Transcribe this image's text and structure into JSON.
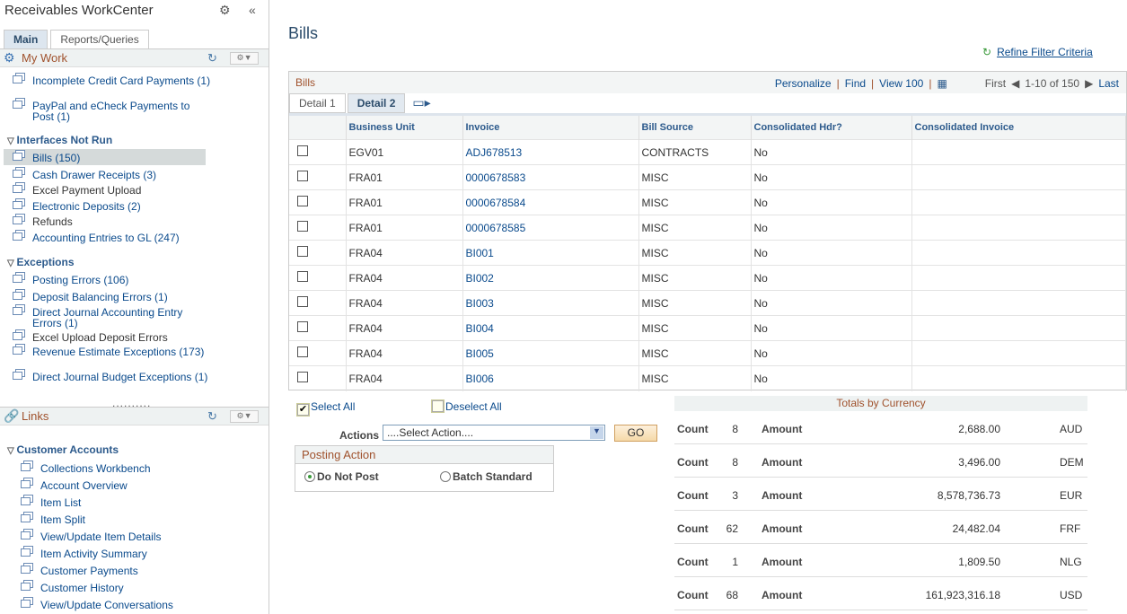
{
  "sidebar": {
    "title": "Receivables WorkCenter",
    "tabs": [
      "Main",
      "Reports/Queries"
    ],
    "my_work": {
      "title": "My Work",
      "items_top": [
        {
          "label": "Incomplete Credit Card Payments (1)"
        },
        {
          "label": "PayPal and eCheck Payments to Post (1)"
        }
      ],
      "groups": [
        {
          "title": "Interfaces Not Run",
          "items": [
            {
              "label": "Bills (150)",
              "link": true
            },
            {
              "label": "Cash Drawer Receipts (3)",
              "link": true
            },
            {
              "label": "Excel Payment Upload",
              "link": false
            },
            {
              "label": "Electronic Deposits (2)",
              "link": true
            },
            {
              "label": "Refunds",
              "link": false
            },
            {
              "label": "Accounting Entries to GL (247)",
              "link": true
            }
          ]
        },
        {
          "title": "Exceptions",
          "items": [
            {
              "label": "Posting Errors (106)",
              "link": true
            },
            {
              "label": "Deposit Balancing Errors (1)",
              "link": true
            },
            {
              "label": "Direct Journal Accounting Entry Errors (1)",
              "link": true
            },
            {
              "label": "Excel Upload Deposit Errors",
              "link": false
            },
            {
              "label": "Revenue Estimate Exceptions (173)",
              "link": true
            },
            {
              "label": "Direct Journal Budget Exceptions (1)",
              "link": true
            }
          ]
        }
      ]
    },
    "links": {
      "title": "Links",
      "group": "Customer Accounts",
      "items": [
        "Collections Workbench",
        "Account Overview",
        "Item List",
        "Item Split",
        "View/Update Item Details",
        "Item Activity Summary",
        "Customer Payments",
        "Customer History",
        "View/Update Conversations"
      ]
    }
  },
  "main": {
    "title": "Bills",
    "refine": "Refine Filter Criteria",
    "grid": {
      "title": "Bills",
      "personalize": "Personalize",
      "find": "Find",
      "view": "View 100",
      "first": "First",
      "range": "1-10 of 150",
      "last": "Last",
      "tabs": [
        "Detail 1",
        "Detail 2"
      ],
      "columns": [
        "Business Unit",
        "Invoice",
        "Bill Source",
        "Consolidated Hdr?",
        "Consolidated Invoice"
      ],
      "rows": [
        [
          "EGV01",
          "ADJ678513",
          "CONTRACTS",
          "No",
          ""
        ],
        [
          "FRA01",
          "0000678583",
          "MISC",
          "No",
          ""
        ],
        [
          "FRA01",
          "0000678584",
          "MISC",
          "No",
          ""
        ],
        [
          "FRA01",
          "0000678585",
          "MISC",
          "No",
          ""
        ],
        [
          "FRA04",
          "BI001",
          "MISC",
          "No",
          ""
        ],
        [
          "FRA04",
          "BI002",
          "MISC",
          "No",
          ""
        ],
        [
          "FRA04",
          "BI003",
          "MISC",
          "No",
          ""
        ],
        [
          "FRA04",
          "BI004",
          "MISC",
          "No",
          ""
        ],
        [
          "FRA04",
          "BI005",
          "MISC",
          "No",
          ""
        ],
        [
          "FRA04",
          "BI006",
          "MISC",
          "No",
          ""
        ]
      ]
    },
    "select_all": "Select All",
    "deselect_all": "Deselect All",
    "actions_label": "Actions",
    "action_value": "....Select Action....",
    "go": "GO",
    "posting": {
      "title": "Posting Action",
      "options": [
        "Do Not Post",
        "Batch Standard"
      ],
      "selected": "Do Not Post"
    },
    "totals": {
      "title": "Totals by Currency",
      "count_label": "Count",
      "amount_label": "Amount",
      "rows": [
        {
          "count": "8",
          "amount": "2,688.00",
          "currency": "AUD"
        },
        {
          "count": "8",
          "amount": "3,496.00",
          "currency": "DEM"
        },
        {
          "count": "3",
          "amount": "8,578,736.73",
          "currency": "EUR"
        },
        {
          "count": "62",
          "amount": "24,482.04",
          "currency": "FRF"
        },
        {
          "count": "1",
          "amount": "1,809.50",
          "currency": "NLG"
        },
        {
          "count": "68",
          "amount": "161,923,316.18",
          "currency": "USD"
        }
      ]
    }
  }
}
